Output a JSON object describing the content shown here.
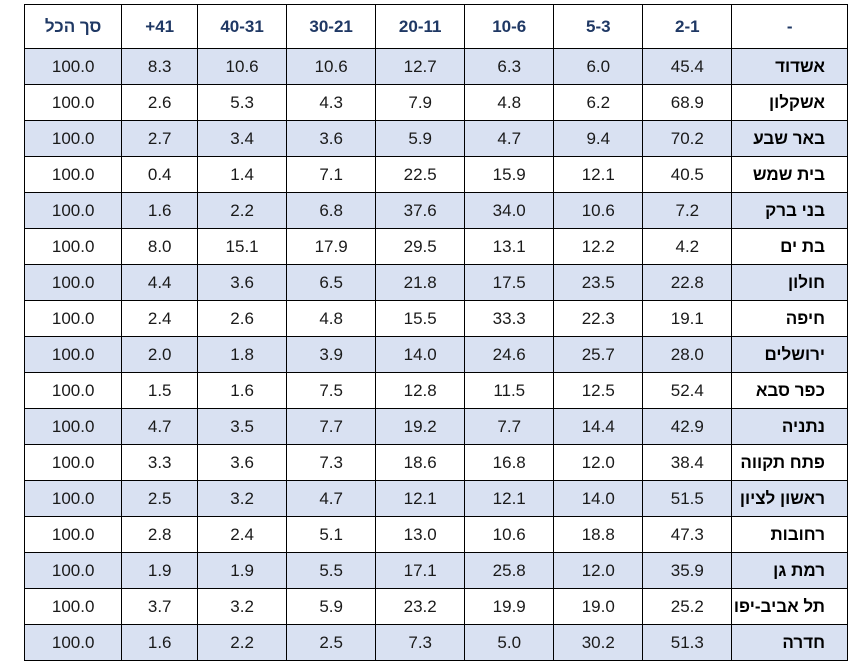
{
  "table": {
    "headers": [
      "-",
      "2-1",
      "5-3",
      "10-6",
      "20-11",
      "30-21",
      "40-31",
      "41+",
      "סך הכל"
    ],
    "rows": [
      {
        "city": "אשדוד",
        "values": [
          "45.4",
          "6.0",
          "6.3",
          "12.7",
          "10.6",
          "10.6",
          "8.3",
          "100.0"
        ]
      },
      {
        "city": "אשקלון",
        "values": [
          "68.9",
          "6.2",
          "4.8",
          "7.9",
          "4.3",
          "5.3",
          "2.6",
          "100.0"
        ]
      },
      {
        "city": "באר שבע",
        "values": [
          "70.2",
          "9.4",
          "4.7",
          "5.9",
          "3.6",
          "3.4",
          "2.7",
          "100.0"
        ]
      },
      {
        "city": "בית שמש",
        "values": [
          "40.5",
          "12.1",
          "15.9",
          "22.5",
          "7.1",
          "1.4",
          "0.4",
          "100.0"
        ]
      },
      {
        "city": "בני ברק",
        "values": [
          "7.2",
          "10.6",
          "34.0",
          "37.6",
          "6.8",
          "2.2",
          "1.6",
          "100.0"
        ]
      },
      {
        "city": "בת ים",
        "values": [
          "4.2",
          "12.2",
          "13.1",
          "29.5",
          "17.9",
          "15.1",
          "8.0",
          "100.0"
        ]
      },
      {
        "city": "חולון",
        "values": [
          "22.8",
          "23.5",
          "17.5",
          "21.8",
          "6.5",
          "3.6",
          "4.4",
          "100.0"
        ]
      },
      {
        "city": "חיפה",
        "values": [
          "19.1",
          "22.3",
          "33.3",
          "15.5",
          "4.8",
          "2.6",
          "2.4",
          "100.0"
        ]
      },
      {
        "city": "ירושלים",
        "values": [
          "28.0",
          "25.7",
          "24.6",
          "14.0",
          "3.9",
          "1.8",
          "2.0",
          "100.0"
        ]
      },
      {
        "city": "כפר סבא",
        "values": [
          "52.4",
          "12.5",
          "11.5",
          "12.8",
          "7.5",
          "1.6",
          "1.5",
          "100.0"
        ]
      },
      {
        "city": "נתניה",
        "values": [
          "42.9",
          "14.4",
          "7.7",
          "19.2",
          "7.7",
          "3.5",
          "4.7",
          "100.0"
        ]
      },
      {
        "city": "פתח תקווה",
        "values": [
          "38.4",
          "12.0",
          "16.8",
          "18.6",
          "7.3",
          "3.6",
          "3.3",
          "100.0"
        ]
      },
      {
        "city": "ראשון לציון",
        "values": [
          "51.5",
          "14.0",
          "12.1",
          "12.1",
          "4.7",
          "3.2",
          "2.5",
          "100.0"
        ]
      },
      {
        "city": "רחובות",
        "values": [
          "47.3",
          "18.8",
          "10.6",
          "13.0",
          "5.1",
          "2.4",
          "2.8",
          "100.0"
        ]
      },
      {
        "city": "רמת גן",
        "values": [
          "35.9",
          "12.0",
          "25.8",
          "17.1",
          "5.5",
          "1.9",
          "1.9",
          "100.0"
        ]
      },
      {
        "city": "תל אביב-יפו",
        "values": [
          "25.2",
          "19.0",
          "19.9",
          "23.2",
          "5.9",
          "3.2",
          "3.7",
          "100.0"
        ]
      },
      {
        "city": "חדרה",
        "values": [
          "51.3",
          "30.2",
          "5.0",
          "7.3",
          "2.5",
          "2.2",
          "1.6",
          "100.0"
        ]
      }
    ]
  },
  "colors": {
    "header_text": "#1f3864",
    "stripe": "#d9e1f2"
  }
}
